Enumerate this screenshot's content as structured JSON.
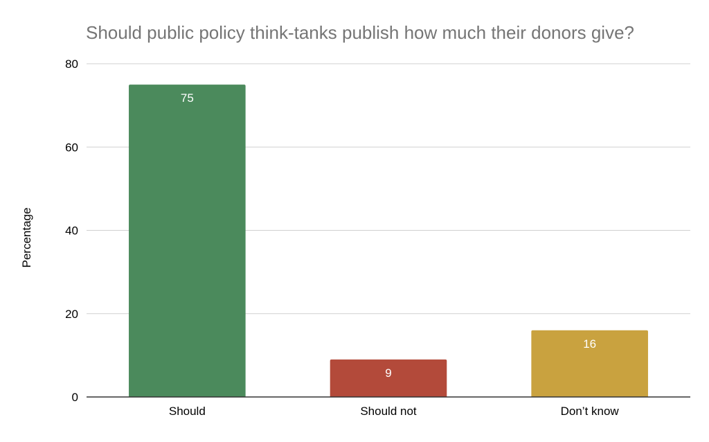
{
  "chart_data": {
    "type": "bar",
    "title": "Should public policy think-tanks publish how much their donors give?",
    "xlabel": "",
    "ylabel": "Percentage",
    "categories": [
      "Should",
      "Should not",
      "Don’t know"
    ],
    "values": [
      75,
      9,
      16
    ],
    "colors": [
      "#4b8a5c",
      "#b34a3a",
      "#c9a23f"
    ],
    "ylim": [
      0,
      80
    ],
    "yticks": [
      0,
      20,
      40,
      60,
      80
    ],
    "data_labels": [
      "75",
      "9",
      "16"
    ],
    "grid": true,
    "legend": "none"
  }
}
